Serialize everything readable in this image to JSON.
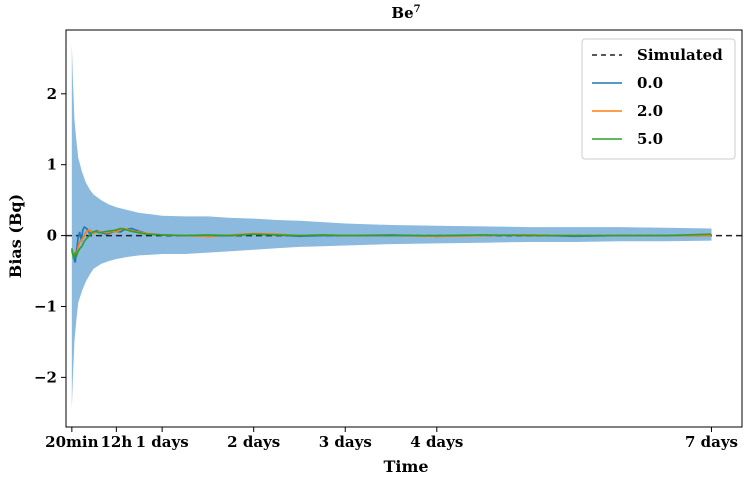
{
  "chart_data": {
    "type": "line",
    "title": "Be",
    "title_superscript": "7",
    "xlabel": "Time",
    "ylabel": "Bias (Bq)",
    "x_unit": "hours",
    "xlim": [
      -1.2,
      176
    ],
    "ylim": [
      -2.7,
      2.9
    ],
    "grid": false,
    "legend_position": "top-right",
    "x_ticks": [
      {
        "value": 0.333,
        "label": "20min"
      },
      {
        "value": 12,
        "label": "12h"
      },
      {
        "value": 24,
        "label": "1 days"
      },
      {
        "value": 48,
        "label": "2 days"
      },
      {
        "value": 72,
        "label": "3 days"
      },
      {
        "value": 96,
        "label": "4 days"
      },
      {
        "value": 168,
        "label": "7 days"
      }
    ],
    "y_ticks": [
      {
        "value": 2,
        "label": "2"
      },
      {
        "value": 1,
        "label": "1"
      },
      {
        "value": 0,
        "label": "0"
      },
      {
        "value": -1,
        "label": "−1"
      },
      {
        "value": -2,
        "label": "−2"
      }
    ],
    "reference_line": {
      "name": "Simulated",
      "y": 0,
      "color": "#222222",
      "style": "dashed"
    },
    "band": {
      "color": "#5b9bd0",
      "x": [
        0.333,
        0.6,
        1.0,
        1.5,
        2.0,
        3.0,
        4.0,
        5.0,
        6.0,
        8.0,
        10,
        12,
        15,
        18,
        21,
        24,
        30,
        36,
        42,
        48,
        54,
        60,
        66,
        72,
        84,
        96,
        108,
        120,
        132,
        144,
        156,
        168
      ],
      "upper": [
        2.7,
        2.2,
        1.65,
        1.35,
        1.1,
        0.9,
        0.75,
        0.65,
        0.58,
        0.5,
        0.44,
        0.4,
        0.36,
        0.32,
        0.3,
        0.28,
        0.27,
        0.27,
        0.25,
        0.24,
        0.22,
        0.21,
        0.19,
        0.17,
        0.15,
        0.14,
        0.13,
        0.12,
        0.12,
        0.12,
        0.11,
        0.1
      ],
      "lower": [
        -2.45,
        -2.0,
        -1.5,
        -1.2,
        -0.95,
        -0.78,
        -0.65,
        -0.55,
        -0.47,
        -0.4,
        -0.36,
        -0.33,
        -0.3,
        -0.28,
        -0.27,
        -0.26,
        -0.26,
        -0.24,
        -0.22,
        -0.2,
        -0.18,
        -0.16,
        -0.15,
        -0.14,
        -0.12,
        -0.11,
        -0.1,
        -0.09,
        -0.09,
        -0.08,
        -0.08,
        -0.07
      ]
    },
    "series": [
      {
        "name": "0.0",
        "color": "#1f77b4",
        "x": [
          0.333,
          0.8,
          1.2,
          1.6,
          2.0,
          2.4,
          2.8,
          3.2,
          3.6,
          4.2,
          5.0,
          6.0,
          7.0,
          8.0,
          9.5,
          11,
          12,
          13,
          14,
          16,
          18,
          20,
          24,
          30,
          36,
          42,
          48,
          54,
          60,
          66,
          72,
          84,
          96,
          108,
          120,
          132,
          144,
          156,
          168
        ],
        "y": [
          -0.22,
          -0.3,
          -0.38,
          -0.2,
          -0.02,
          0.05,
          -0.08,
          0.08,
          0.12,
          0.1,
          0.03,
          0.05,
          0.07,
          0.04,
          0.02,
          0.05,
          0.06,
          0.05,
          0.08,
          0.1,
          0.06,
          0.03,
          0.01,
          0.0,
          -0.01,
          0.0,
          0.02,
          0.01,
          -0.01,
          0.0,
          0.0,
          0.01,
          -0.01,
          0.0,
          0.01,
          -0.01,
          0.0,
          0.0,
          0.0
        ]
      },
      {
        "name": "2.0",
        "color": "#ff7f0e",
        "x": [
          0.333,
          0.8,
          1.2,
          1.6,
          2.0,
          2.5,
          3.0,
          3.6,
          4.2,
          5.0,
          6.0,
          7.0,
          8.0,
          9.5,
          11,
          12,
          13,
          14,
          16,
          18,
          20,
          24,
          30,
          36,
          42,
          48,
          54,
          60,
          66,
          72,
          84,
          96,
          108,
          120,
          132,
          144,
          156,
          168
        ],
        "y": [
          -0.2,
          -0.28,
          -0.24,
          -0.27,
          -0.15,
          -0.08,
          -0.05,
          0.0,
          0.06,
          0.08,
          0.03,
          0.06,
          0.05,
          0.04,
          0.06,
          0.05,
          0.08,
          0.1,
          0.07,
          0.05,
          0.03,
          0.01,
          0.0,
          -0.01,
          0.01,
          0.03,
          0.02,
          0.0,
          0.01,
          0.0,
          0.0,
          -0.01,
          0.0,
          0.01,
          0.0,
          0.0,
          0.0,
          0.0
        ]
      },
      {
        "name": "5.0",
        "color": "#2ca02c",
        "x": [
          0.333,
          0.8,
          1.2,
          1.6,
          2.0,
          2.5,
          3.0,
          3.6,
          4.2,
          5.0,
          5.8,
          6.5,
          7.5,
          8.5,
          9.5,
          11,
          12,
          13,
          14,
          16,
          18,
          20,
          24,
          30,
          36,
          42,
          48,
          54,
          60,
          66,
          72,
          84,
          96,
          108,
          120,
          132,
          144,
          156,
          168
        ],
        "y": [
          -0.18,
          -0.32,
          -0.25,
          -0.28,
          -0.22,
          -0.18,
          -0.15,
          -0.08,
          -0.04,
          0.0,
          0.05,
          0.06,
          0.04,
          0.05,
          0.06,
          0.07,
          0.08,
          0.1,
          0.09,
          0.06,
          0.04,
          0.02,
          0.01,
          0.0,
          0.01,
          0.0,
          0.02,
          0.01,
          0.0,
          0.01,
          0.0,
          0.0,
          0.0,
          0.01,
          0.0,
          0.0,
          0.0,
          0.0,
          0.02
        ]
      }
    ]
  }
}
